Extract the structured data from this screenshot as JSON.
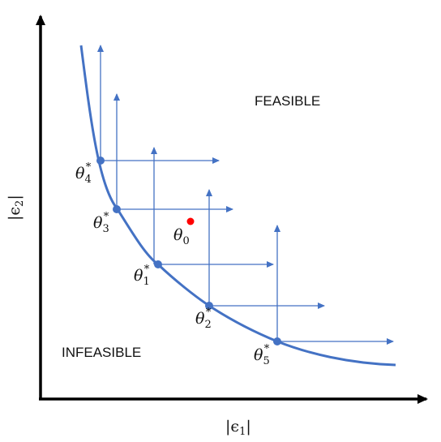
{
  "regions": {
    "feasible": "FEASIBLE",
    "infeasible": "INFEASIBLE"
  },
  "axes": {
    "x_label_symbol": "ϵ",
    "x_label_index": "1",
    "y_label_symbol": "ϵ",
    "y_label_index": "2"
  },
  "points": [
    {
      "id": "theta4",
      "symbol": "θ",
      "index": "4",
      "star": "*"
    },
    {
      "id": "theta3",
      "symbol": "θ",
      "index": "3",
      "star": "*"
    },
    {
      "id": "theta1",
      "symbol": "θ",
      "index": "1",
      "star": "*"
    },
    {
      "id": "theta2",
      "symbol": "θ",
      "index": "2",
      "star": "*"
    },
    {
      "id": "theta5",
      "symbol": "θ",
      "index": "5",
      "star": "*"
    }
  ],
  "initial_point": {
    "symbol": "θ",
    "index": "0"
  },
  "colors": {
    "curve": "#4472C4",
    "arrows": "#4472C4",
    "axes": "#000000",
    "initial_point": "#FF0000"
  }
}
